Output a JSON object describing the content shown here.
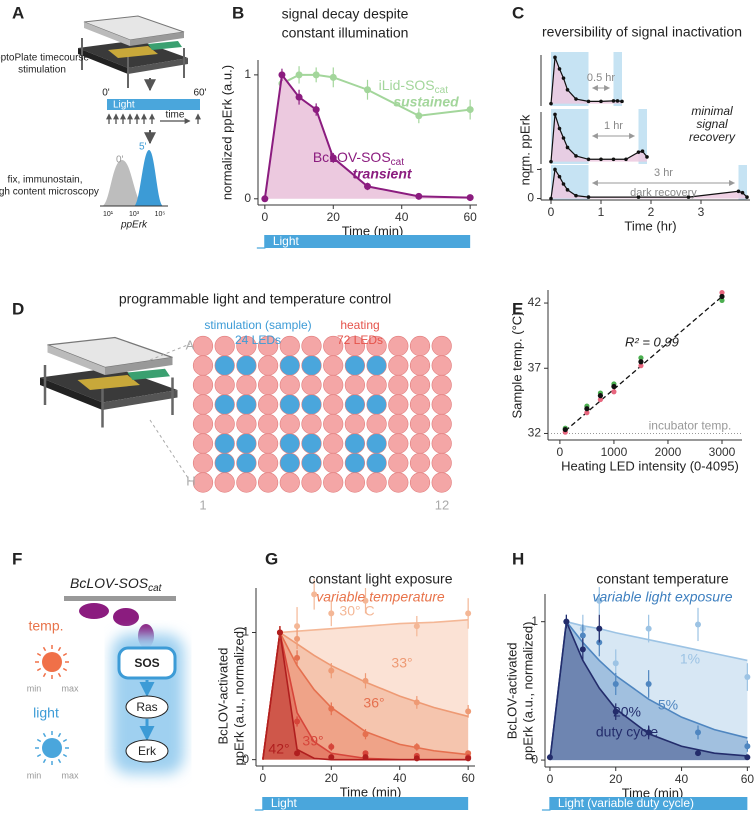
{
  "panel_a": {
    "label": "A",
    "stimulation": [
      "optoPlate timecourse",
      "stimulation"
    ],
    "light": "Light",
    "start": "0'",
    "end": "60'",
    "time": "time",
    "readout": [
      "fix, immunostain,",
      "high content microscopy"
    ],
    "hist_labels": [
      "0'",
      "5'"
    ],
    "hist_ticks": [
      "10¹",
      "10³",
      "10⁵"
    ],
    "xlabel": "ppErk"
  },
  "panel_d": {
    "label": "D",
    "title": "programmable light and temperature control",
    "stim": [
      "stimulation (sample)",
      "24 LEDs"
    ],
    "heat": [
      "heating",
      "72 LEDs"
    ],
    "rows": [
      "A",
      "H"
    ],
    "cols": [
      "1",
      "12"
    ]
  },
  "panel_f": {
    "label": "F",
    "construct": "BcLOV-SOS",
    "subscript": "cat",
    "temp": "temp.",
    "light": "light",
    "min": "min",
    "max": "max",
    "nodes": [
      "SOS",
      "Ras",
      "Erk"
    ]
  },
  "chart_data": [
    {
      "panel": "B",
      "type": "line",
      "title": [
        "signal decay despite",
        "constant illumination"
      ],
      "xlabel": "Time (min)",
      "ylabel": "normalized ppErk (a.u.)",
      "light_label": "Light",
      "xlim": [
        -2,
        62
      ],
      "ylim": [
        -0.05,
        1.12
      ],
      "xticks": [
        0,
        20,
        40,
        60
      ],
      "yticks": [
        0,
        1
      ],
      "series": [
        {
          "name": "iLid-SOS",
          "subscript": "cat",
          "annotation": "sustained",
          "color": "#a3d69b",
          "x": [
            5,
            10,
            15,
            20,
            30,
            45,
            60
          ],
          "values": [
            0.93,
            1.0,
            1.0,
            0.98,
            0.88,
            0.67,
            0.72
          ],
          "errors": [
            0.06,
            0.07,
            0.06,
            0.08,
            0.08,
            0.06,
            0.08
          ]
        },
        {
          "name": "BcLOV-SOS",
          "subscript": "cat",
          "annotation": "transient",
          "color": "#8b1c7f",
          "fill": "#ecc9df",
          "x": [
            0,
            5,
            10,
            15,
            20,
            30,
            45,
            60
          ],
          "values": [
            0,
            1,
            0.82,
            0.72,
            0.33,
            0.1,
            0.02,
            0.01
          ],
          "errors": [
            0.01,
            0.05,
            0.06,
            0.05,
            0.04,
            0.03,
            0.01,
            0.01
          ]
        }
      ]
    },
    {
      "panel": "C",
      "type": "line",
      "title": "reversibility of signal inactivation",
      "interval_label": "0.5 hr",
      "xlim": [
        -0.2,
        3.98
      ],
      "ylim": [
        -0.05,
        1.05
      ],
      "light": [
        [
          0,
          0.75
        ],
        [
          1.25,
          1.42
        ]
      ],
      "series": [
        {
          "color": "#111111",
          "fill": "#ecc9df",
          "x": [
            0,
            0.08,
            0.17,
            0.25,
            0.33,
            0.5,
            0.75,
            1.0,
            1.25,
            1.33,
            1.42
          ],
          "values": [
            0,
            1,
            0.75,
            0.55,
            0.3,
            0.1,
            0.05,
            0.05,
            0.06,
            0.06,
            0.05
          ]
        }
      ]
    },
    {
      "type": "line",
      "interval_label": "1 hr",
      "xlim": [
        -0.2,
        3.98
      ],
      "ylim": [
        -0.05,
        1.05
      ],
      "light": [
        [
          0,
          0.75
        ],
        [
          1.75,
          1.92
        ]
      ],
      "series": [
        {
          "color": "#111111",
          "fill": "#ecc9df",
          "x": [
            0,
            0.08,
            0.17,
            0.25,
            0.33,
            0.5,
            0.75,
            1.0,
            1.25,
            1.5,
            1.75,
            1.83,
            1.92
          ],
          "values": [
            0,
            1,
            0.7,
            0.5,
            0.3,
            0.12,
            0.05,
            0.05,
            0.05,
            0.05,
            0.2,
            0.22,
            0.1
          ]
        }
      ]
    },
    {
      "type": "line",
      "interval_label": "3 hr",
      "interval_note": "dark recovery",
      "note": [
        "minimal",
        "signal",
        "recovery"
      ],
      "xlabel": "Time (hr)",
      "ylabel": "norm. ppErk",
      "xlim": [
        -0.2,
        3.98
      ],
      "ylim": [
        -0.05,
        1.05
      ],
      "xticks": [
        0,
        1,
        2,
        3
      ],
      "yticks": [
        0,
        1
      ],
      "light": [
        [
          0,
          0.75
        ],
        [
          3.75,
          3.92
        ]
      ],
      "series": [
        {
          "color": "#111111",
          "fill": "#ecc9df",
          "x": [
            0,
            0.08,
            0.17,
            0.25,
            0.33,
            0.5,
            0.75,
            1.75,
            2.75,
            3.75,
            3.83,
            3.92
          ],
          "values": [
            0,
            1,
            0.75,
            0.5,
            0.3,
            0.1,
            0.05,
            0.05,
            0.05,
            0.25,
            0.2,
            0.05
          ]
        }
      ]
    },
    {
      "panel": "E",
      "type": "scatter",
      "xlabel": "Heating LED intensity (0-4095)",
      "ylabel": "Sample temp. (°C)",
      "annotation": "R² = 0.99",
      "incubator_line": 32,
      "incubator_label": "incubator temp.",
      "xlim": [
        -220,
        3370
      ],
      "ylim": [
        31.5,
        43
      ],
      "xticks": [
        0,
        1000,
        2000,
        3000
      ],
      "yticks": [
        32,
        37,
        42
      ],
      "fit_line": {
        "x": [
          100,
          3000
        ],
        "y": [
          32.2,
          42.5
        ]
      },
      "series": [
        {
          "color": "#e8677f",
          "x": [
            100,
            500,
            750,
            1000,
            1500,
            3000
          ],
          "values": [
            32.1,
            33.6,
            34.6,
            35.2,
            37.2,
            42.8
          ]
        },
        {
          "color": "#4caf50",
          "x": [
            100,
            500,
            750,
            1000,
            1500,
            3000
          ],
          "values": [
            32.4,
            34.1,
            35.1,
            35.8,
            37.8,
            42.2
          ]
        },
        {
          "color": "#111111",
          "x": [
            100,
            500,
            750,
            1000,
            1500,
            3000
          ],
          "values": [
            32.3,
            33.9,
            34.9,
            35.6,
            37.5,
            42.5
          ]
        }
      ]
    },
    {
      "panel": "G",
      "type": "line",
      "title": "constant light exposure",
      "subtitle": "variable temperature",
      "xlabel": "Time (min)",
      "ylabel": [
        "BcLOV-activated",
        "ppErk (a.u., normalized)"
      ],
      "light_label": "Light",
      "xlim": [
        -2,
        62
      ],
      "ylim": [
        -0.05,
        1.35
      ],
      "xticks": [
        0,
        20,
        40,
        60
      ],
      "yticks": [
        0,
        1
      ],
      "fit_x": [
        0,
        5,
        10,
        15,
        20,
        30,
        40,
        50,
        60
      ],
      "series": [
        {
          "name": "30° C",
          "color": "#f4b796",
          "x": [
            5,
            10,
            15,
            20,
            30,
            45,
            60
          ],
          "values": [
            1,
            1.05,
            1.3,
            1.15,
            1.25,
            1.05,
            1.15
          ],
          "errors": [
            0.05,
            0.15,
            0.12,
            0.1,
            0.1,
            0.08,
            0.12
          ],
          "fit": [
            0,
            1,
            1.01,
            1.02,
            1.03,
            1.05,
            1.07,
            1.08,
            1.1
          ]
        },
        {
          "name": "33°",
          "color": "#ee9a74",
          "x": [
            5,
            10,
            20,
            30,
            45,
            60
          ],
          "values": [
            1,
            0.95,
            0.7,
            0.62,
            0.45,
            0.38
          ],
          "errors": [
            0.05,
            0.08,
            0.06,
            0.06,
            0.05,
            0.05
          ],
          "fit": [
            0,
            1,
            0.91,
            0.82,
            0.74,
            0.61,
            0.5,
            0.41,
            0.34
          ]
        },
        {
          "name": "36°",
          "color": "#e5704f",
          "x": [
            5,
            10,
            20,
            30,
            45,
            60
          ],
          "values": [
            1,
            0.8,
            0.4,
            0.2,
            0.1,
            0.05
          ],
          "errors": [
            0.05,
            0.06,
            0.05,
            0.04,
            0.03,
            0.02
          ],
          "fit": [
            0,
            1,
            0.74,
            0.55,
            0.41,
            0.22,
            0.12,
            0.07,
            0.04
          ]
        },
        {
          "name": "39°",
          "color": "#d6453a",
          "x": [
            5,
            10,
            20,
            30,
            45,
            60
          ],
          "values": [
            1,
            0.3,
            0.1,
            0.05,
            0.03,
            0.02
          ],
          "errors": [
            0.05,
            0.04,
            0.03,
            0.02,
            0.01,
            0.01
          ],
          "fit": [
            0,
            1,
            0.37,
            0.14,
            0.05,
            0.01,
            0,
            0,
            0
          ]
        },
        {
          "name": "42°",
          "color": "#b01e1e",
          "x": [
            5,
            10,
            20,
            30,
            45,
            60
          ],
          "values": [
            1,
            0.05,
            0.02,
            0.02,
            0.01,
            0.01
          ],
          "errors": [
            0.05,
            0.02,
            0.01,
            0.01,
            0.01,
            0.01
          ],
          "fit": [
            0,
            1,
            0.08,
            0.01,
            0,
            0,
            0,
            0,
            0
          ]
        }
      ]
    },
    {
      "panel": "H",
      "type": "line",
      "title": "constant temperature",
      "subtitle": "variable light exposure",
      "annotation": "duty cycle",
      "xlabel": "Time (min)",
      "ylabel": [
        "BcLOV-activated",
        "ppErk (a.u., normalized)"
      ],
      "light_label": "Light (variable duty cycle)",
      "xlim": [
        -1.5,
        60.8
      ],
      "ylim": [
        -0.05,
        1.2
      ],
      "xticks": [
        0,
        20,
        40,
        60
      ],
      "yticks": [
        0,
        1
      ],
      "fit_x": [
        0,
        5,
        10,
        15,
        20,
        30,
        40,
        50,
        60
      ],
      "series": [
        {
          "name": "1%",
          "color": "#9cc3e4",
          "x": [
            5,
            10,
            15,
            20,
            30,
            45,
            60
          ],
          "values": [
            1,
            0.95,
            1.15,
            0.7,
            0.95,
            0.98,
            0.6
          ],
          "errors": [
            0.05,
            0.1,
            0.1,
            0.1,
            0.1,
            0.12,
            0.1
          ],
          "fit": [
            0,
            1,
            0.97,
            0.95,
            0.92,
            0.87,
            0.82,
            0.77,
            0.72
          ]
        },
        {
          "name": "5%",
          "color": "#4f86c0",
          "x": [
            5,
            10,
            15,
            20,
            30,
            45,
            60
          ],
          "values": [
            1,
            0.9,
            0.85,
            0.55,
            0.55,
            0.2,
            0.1
          ],
          "errors": [
            0.05,
            0.08,
            0.1,
            0.08,
            0.1,
            0.05,
            0.04
          ],
          "fit": [
            0,
            1,
            0.85,
            0.72,
            0.61,
            0.44,
            0.31,
            0.22,
            0.16
          ]
        },
        {
          "name": "20%",
          "color": "#232c6b",
          "x": [
            0,
            5,
            10,
            15,
            20,
            30,
            45,
            60
          ],
          "values": [
            0.02,
            1,
            0.8,
            0.95,
            0.35,
            0.2,
            0.05,
            0.02
          ],
          "errors": [
            0.01,
            0.05,
            0.08,
            0.1,
            0.06,
            0.05,
            0.02,
            0.01
          ],
          "fit": [
            0,
            1,
            0.72,
            0.52,
            0.37,
            0.19,
            0.1,
            0.05,
            0.03
          ]
        }
      ]
    }
  ]
}
